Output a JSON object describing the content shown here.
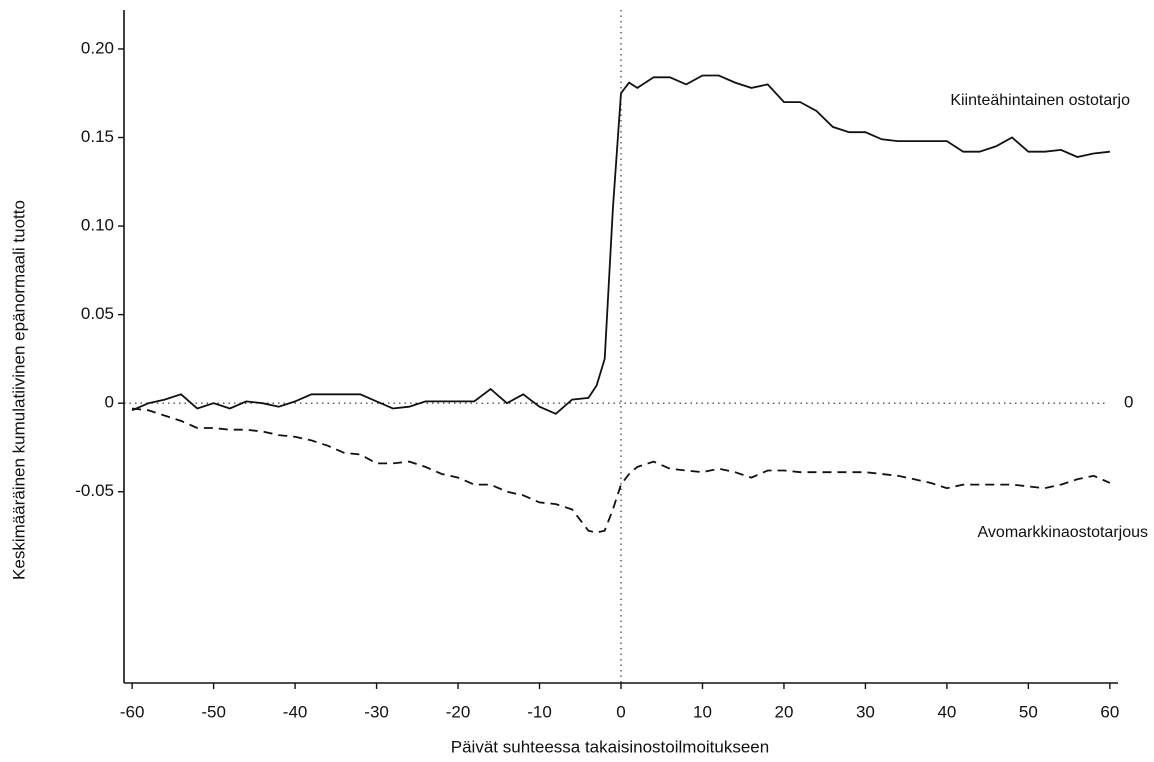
{
  "chart_data": {
    "type": "line",
    "x_label": "Päivät suhteessa takaisinostoilmoitukseen",
    "y_label": "Keskimääräinen kumulatiivinen epänormaali tuotto",
    "x": [
      -60,
      -58,
      -56,
      -54,
      -52,
      -50,
      -48,
      -46,
      -44,
      -42,
      -40,
      -38,
      -36,
      -34,
      -32,
      -30,
      -28,
      -26,
      -24,
      -22,
      -20,
      -18,
      -16,
      -14,
      -12,
      -10,
      -8,
      -6,
      -4,
      -3,
      -2,
      -1,
      0,
      1,
      2,
      4,
      6,
      8,
      10,
      12,
      14,
      16,
      18,
      20,
      22,
      24,
      26,
      28,
      30,
      32,
      34,
      36,
      38,
      40,
      42,
      44,
      46,
      48,
      50,
      52,
      54,
      56,
      58,
      60
    ],
    "series": [
      {
        "name": "Kiinteähintainen ostotarjo",
        "color": "#111111",
        "style": "solid",
        "values": [
          -0.004,
          0,
          0.002,
          0.005,
          -0.003,
          0,
          -0.003,
          0.001,
          0,
          -0.002,
          0.001,
          0.005,
          0.005,
          0.005,
          0.005,
          0.001,
          -0.003,
          -0.002,
          0.001,
          0.001,
          0.001,
          0.001,
          0.008,
          0,
          0.005,
          -0.002,
          -0.006,
          0.002,
          0.003,
          0.01,
          0.025,
          0.11,
          0.175,
          0.181,
          0.178,
          0.184,
          0.184,
          0.18,
          0.185,
          0.185,
          0.181,
          0.178,
          0.18,
          0.17,
          0.17,
          0.165,
          0.156,
          0.153,
          0.153,
          0.149,
          0.148,
          0.148,
          0.148,
          0.148,
          0.142,
          0.142,
          0.145,
          0.15,
          0.142,
          0.142,
          0.143,
          0.139,
          0.141,
          0.142
        ]
      },
      {
        "name": "Avomarkkinaostotarjous",
        "color": "#111111",
        "style": "dashed",
        "values": [
          -0.003,
          -0.004,
          -0.007,
          -0.01,
          -0.014,
          -0.014,
          -0.015,
          -0.015,
          -0.016,
          -0.018,
          -0.019,
          -0.021,
          -0.024,
          -0.028,
          -0.029,
          -0.034,
          -0.034,
          -0.033,
          -0.036,
          -0.04,
          -0.042,
          -0.046,
          -0.046,
          -0.05,
          -0.052,
          -0.056,
          -0.057,
          -0.06,
          -0.072,
          -0.073,
          -0.072,
          -0.06,
          -0.046,
          -0.04,
          -0.036,
          -0.033,
          -0.037,
          -0.038,
          -0.039,
          -0.037,
          -0.039,
          -0.042,
          -0.038,
          -0.038,
          -0.039,
          -0.039,
          -0.039,
          -0.039,
          -0.039,
          -0.04,
          -0.041,
          -0.043,
          -0.045,
          -0.048,
          -0.046,
          -0.046,
          -0.046,
          -0.046,
          -0.047,
          -0.048,
          -0.046,
          -0.043,
          -0.041,
          -0.045
        ]
      }
    ],
    "xlim": [
      -61,
      61
    ],
    "ylim": [
      -0.158,
      0.222
    ],
    "xticks": [
      -60,
      -50,
      -40,
      -30,
      -20,
      -10,
      0,
      10,
      20,
      30,
      40,
      50,
      60
    ],
    "yticks": [
      {
        "value": 0.2,
        "label": "0.20"
      },
      0.15,
      {
        "value": 0.1,
        "label": "0.10"
      },
      0.05,
      0,
      -0.05
    ],
    "reference_x": 0,
    "reference_y": 0,
    "reference_y_label": "0"
  }
}
